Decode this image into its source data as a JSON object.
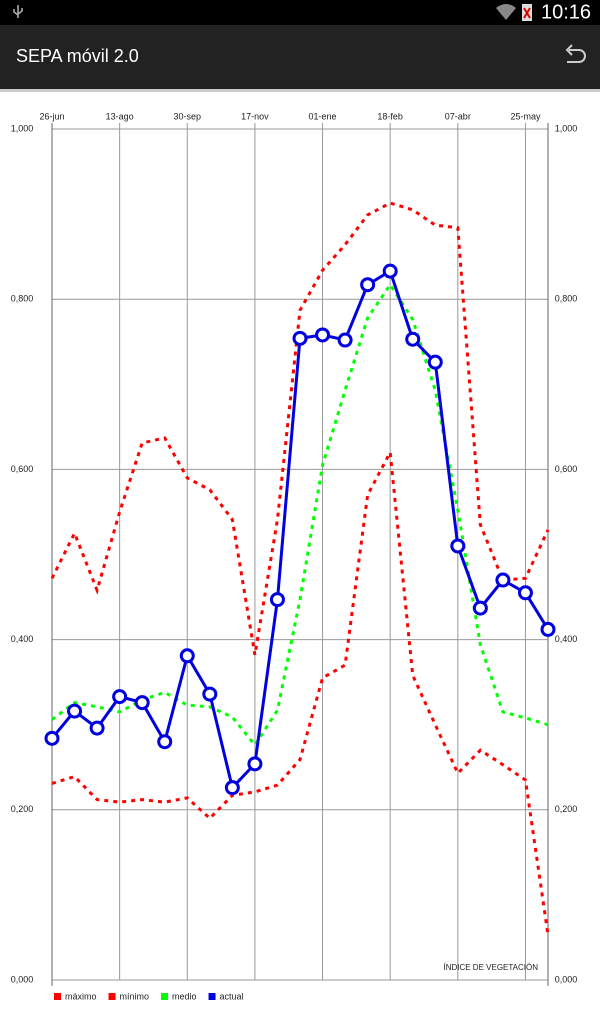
{
  "status_bar": {
    "time": "10:16"
  },
  "app_bar": {
    "title": "SEPA móvil 2.0"
  },
  "chart_data": {
    "type": "line",
    "annotation": "ÍNDICE DE VEGETACIÓN",
    "categories": [
      "26-jun",
      null,
      null,
      "13-ago",
      null,
      null,
      "30-sep",
      null,
      null,
      "17-nov",
      null,
      null,
      "01-ene",
      null,
      null,
      "18-feb",
      null,
      null,
      "07-abr",
      null,
      null,
      "25-may",
      null
    ],
    "series": [
      {
        "name": "máximo",
        "color": "#ff0000",
        "line_style": "dashed",
        "values": [
          0.472,
          0.525,
          0.458,
          0.55,
          0.631,
          0.637,
          0.59,
          0.576,
          0.541,
          0.382,
          0.541,
          0.787,
          0.834,
          0.864,
          0.899,
          0.913,
          0.905,
          0.887,
          0.884,
          0.535,
          0.47,
          0.472,
          0.529
        ]
      },
      {
        "name": "mínimo",
        "color": "#ff0000",
        "line_style": "dashed",
        "values": [
          0.231,
          0.239,
          0.212,
          0.209,
          0.212,
          0.209,
          0.214,
          0.19,
          0.217,
          0.221,
          0.229,
          0.259,
          0.355,
          0.37,
          0.57,
          0.62,
          0.358,
          0.3,
          0.243,
          0.27,
          0.253,
          0.235,
          0.053
        ]
      },
      {
        "name": "medio",
        "color": "#00ff00",
        "line_style": "dashed",
        "values": [
          0.306,
          0.326,
          0.321,
          0.315,
          0.329,
          0.338,
          0.323,
          0.321,
          0.309,
          0.276,
          0.317,
          0.447,
          0.605,
          0.693,
          0.778,
          0.817,
          0.776,
          0.693,
          0.552,
          0.394,
          0.315,
          0.308,
          0.3
        ]
      },
      {
        "name": "actual",
        "color": "#0000e0",
        "line_style": "solid",
        "marker": "circle",
        "values": [
          0.284,
          0.316,
          0.296,
          0.333,
          0.326,
          0.28,
          0.381,
          0.336,
          0.226,
          0.254,
          0.447,
          0.754,
          0.758,
          0.752,
          0.817,
          0.833,
          0.753,
          0.726,
          0.51,
          0.437,
          0.47,
          0.455,
          0.412
        ]
      }
    ],
    "ylim": [
      0,
      1
    ],
    "yticks": [
      {
        "value": 0,
        "label": "0,000"
      },
      {
        "value": 0.2,
        "label": "0,200"
      },
      {
        "value": 0.4,
        "label": "0,400"
      },
      {
        "value": 0.6,
        "label": "0,600"
      },
      {
        "value": 0.8,
        "label": "0,800"
      },
      {
        "value": 1,
        "label": "1,000"
      }
    ],
    "grid": true
  }
}
